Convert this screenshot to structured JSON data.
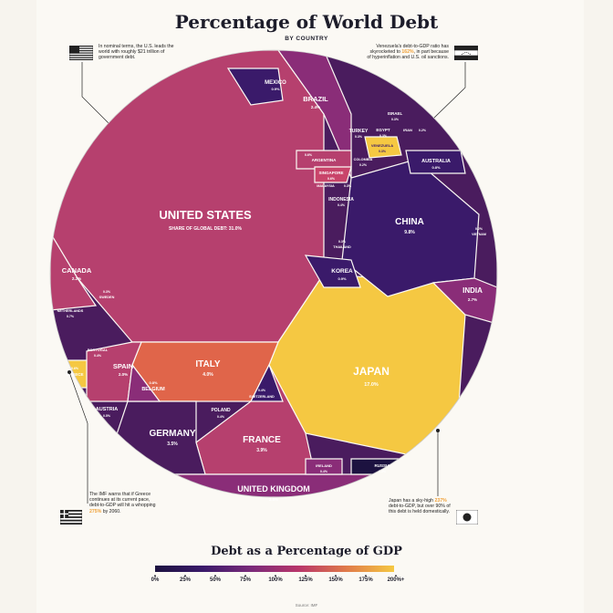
{
  "title": "Percentage of World Debt",
  "subtitle": "BY COUNTRY",
  "notes": {
    "us": "In nominal terms, the U.S. leads the world with roughly $21 trillion of government debt.",
    "venezuela_a": "Venezuela's debt-to-GDP ratio has skyrocketed to ",
    "venezuela_hl": "162%",
    "venezuela_b": ", in part because of hyperinflation and U.S. oil sanctions.",
    "greece_a": "The IMF warns that if Greece continues at its current pace, debt-to-GDP will hit a whopping ",
    "greece_hl": "275%",
    "greece_b": " by 2060.",
    "japan_a": "Japan has a sky-high ",
    "japan_hl": "237%",
    "japan_b": " debt-to-GDP, but over 90% of this debt is held domestically."
  },
  "legend": {
    "title": "Debt as a Percentage of GDP",
    "ticks": [
      "0%",
      "25%",
      "50%",
      "75%",
      "100%",
      "125%",
      "150%",
      "175%",
      "200%+"
    ]
  },
  "source": "Source: IMF",
  "colors": {
    "low": "#1c1240",
    "mid": "#8a2d78",
    "high": "#c9446a",
    "peak": "#f5c842",
    "us": "#b6406e",
    "japan": "#f5c842",
    "italy": "#e0654a"
  },
  "chart_data": {
    "type": "voronoi-treemap",
    "title": "Percentage of World Debt",
    "subtitle": "BY COUNTRY",
    "value_label": "Share of global debt (%)",
    "color_label": "Debt as a Percentage of GDP",
    "countries": [
      {
        "name": "UNITED STATES",
        "share_label": "SHARE OF GLOBAL DEBT: 31.0%",
        "value": 31.0
      },
      {
        "name": "JAPAN",
        "share_label": "17.0%",
        "value": 17.0
      },
      {
        "name": "CHINA",
        "share_label": "9.8%",
        "value": 9.8
      },
      {
        "name": "ITALY",
        "share_label": "4.0%",
        "value": 4.0
      },
      {
        "name": "FRANCE",
        "share_label": "3.9%",
        "value": 3.9
      },
      {
        "name": "GERMANY",
        "share_label": "3.5%",
        "value": 3.5
      },
      {
        "name": "UNITED KINGDOM",
        "share_label": "3.5%",
        "value": 3.5
      },
      {
        "name": "INDIA",
        "share_label": "2.7%",
        "value": 2.7
      },
      {
        "name": "BRAZIL",
        "share_label": "2.4%",
        "value": 2.4
      },
      {
        "name": "CANADA",
        "share_label": "2.2%",
        "value": 2.2
      },
      {
        "name": "SPAIN",
        "share_label": "2.0%",
        "value": 2.0
      },
      {
        "name": "MEXICO",
        "share_label": "0.9%",
        "value": 0.9
      },
      {
        "name": "KOREA",
        "share_label": "0.9%",
        "value": 0.9
      },
      {
        "name": "BELGIUM",
        "share_label": "0.8%",
        "value": 0.8
      },
      {
        "name": "AUSTRALIA",
        "share_label": "0.8%",
        "value": 0.8
      },
      {
        "name": "ARGENTINA",
        "share_label": "0.6%",
        "value": 0.6
      },
      {
        "name": "SINGAPORE",
        "share_label": "0.6%",
        "value": 0.6
      },
      {
        "name": "AUSTRIA",
        "share_label": "0.5%",
        "value": 0.5
      },
      {
        "name": "GREECE",
        "share_label": "0.6%",
        "value": 0.6
      },
      {
        "name": "INDONESIA",
        "share_label": "0.4%",
        "value": 0.4
      },
      {
        "name": "POLAND",
        "share_label": "0.4%",
        "value": 0.4
      },
      {
        "name": "SWITZERLAND",
        "share_label": "0.4%",
        "value": 0.4
      },
      {
        "name": "PORTUGAL",
        "share_label": "0.4%",
        "value": 0.4
      },
      {
        "name": "IRELAND",
        "share_label": "0.4%",
        "value": 0.4
      },
      {
        "name": "VENEZUELA",
        "share_label": "0.3%",
        "value": 0.3
      },
      {
        "name": "RUSSIA",
        "share_label": "0.3%",
        "value": 0.3
      },
      {
        "name": "TURKEY",
        "share_label": "0.3%",
        "value": 0.3
      },
      {
        "name": "EGYPT",
        "share_label": "0.3%",
        "value": 0.3
      },
      {
        "name": "ISRAEL",
        "share_label": "0.3%",
        "value": 0.3
      },
      {
        "name": "THAILAND",
        "share_label": "0.3%",
        "value": 0.3
      },
      {
        "name": "MALAYSIA",
        "share_label": "0.3%",
        "value": 0.3
      },
      {
        "name": "SWEDEN",
        "share_label": "0.3%",
        "value": 0.3
      },
      {
        "name": "NETHERLANDS",
        "share_label": "0.7%",
        "value": 0.7
      },
      {
        "name": "COLOMBIA",
        "share_label": "0.2%",
        "value": 0.2
      },
      {
        "name": "IRAN",
        "share_label": "0.2%",
        "value": 0.2
      },
      {
        "name": "VIETNAM",
        "share_label": "0.2%",
        "value": 0.2
      }
    ]
  }
}
